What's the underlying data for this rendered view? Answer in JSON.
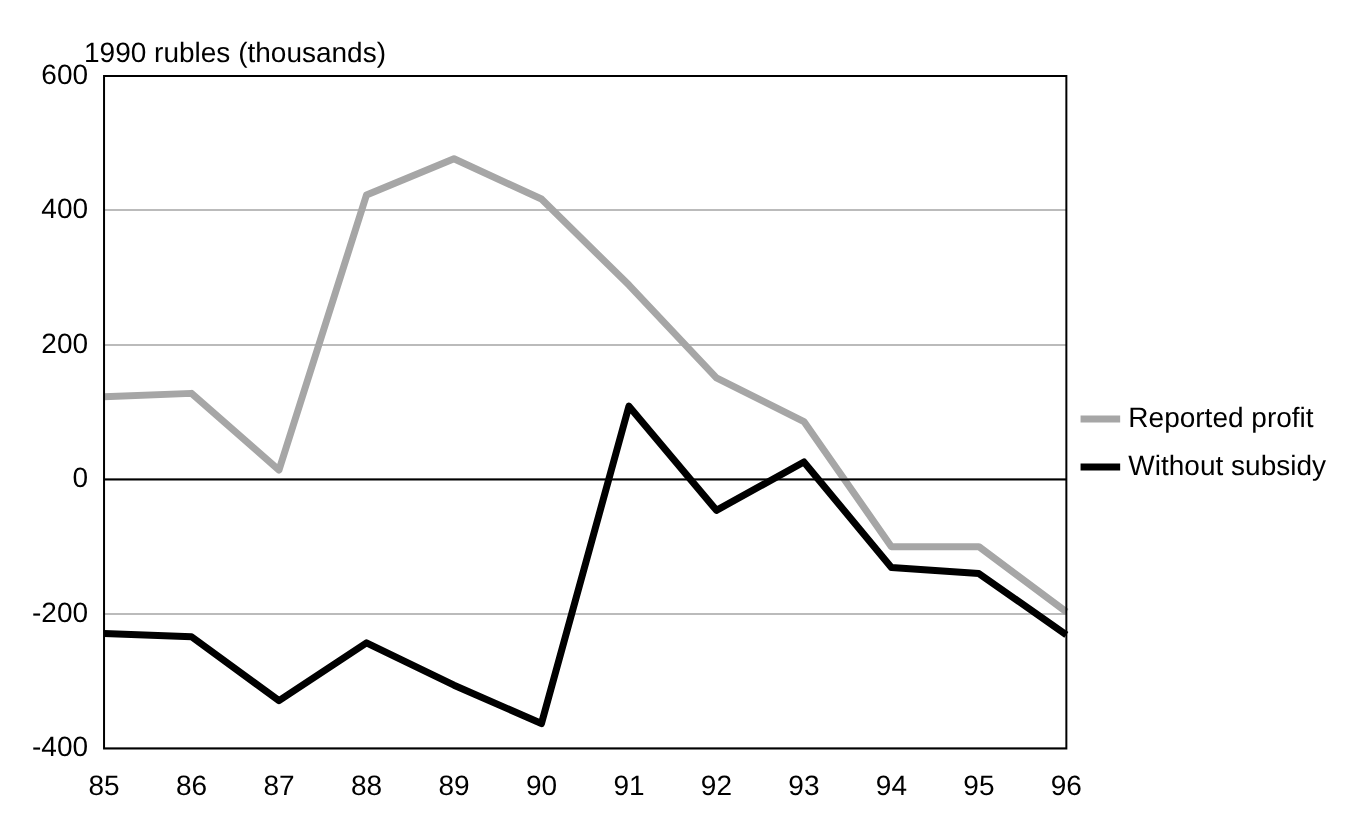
{
  "chart_data": {
    "type": "line",
    "ylabel": "1990 rubles (thousands)",
    "categories": [
      "85",
      "86",
      "87",
      "88",
      "89",
      "90",
      "91",
      "92",
      "93",
      "94",
      "95",
      "96"
    ],
    "series": [
      {
        "name": "Reported profit",
        "color": "#a6a6a6",
        "values": [
          123,
          128,
          14,
          423,
          477,
          417,
          289,
          151,
          86,
          -100,
          -100,
          -197
        ]
      },
      {
        "name": "Without subsidy",
        "color": "#000000",
        "values": [
          -229,
          -234,
          -329,
          -243,
          -306,
          -363,
          109,
          -46,
          26,
          -131,
          -140,
          -231
        ]
      }
    ],
    "ylim": [
      -400,
      600
    ],
    "yticks": [
      -400,
      -200,
      0,
      200,
      400,
      600
    ],
    "grid": "y",
    "legend": "right",
    "marker": "none",
    "line_style": "solid",
    "ref_lines": [
      {
        "axis": "y",
        "value": 0,
        "color": "#000000"
      }
    ]
  }
}
